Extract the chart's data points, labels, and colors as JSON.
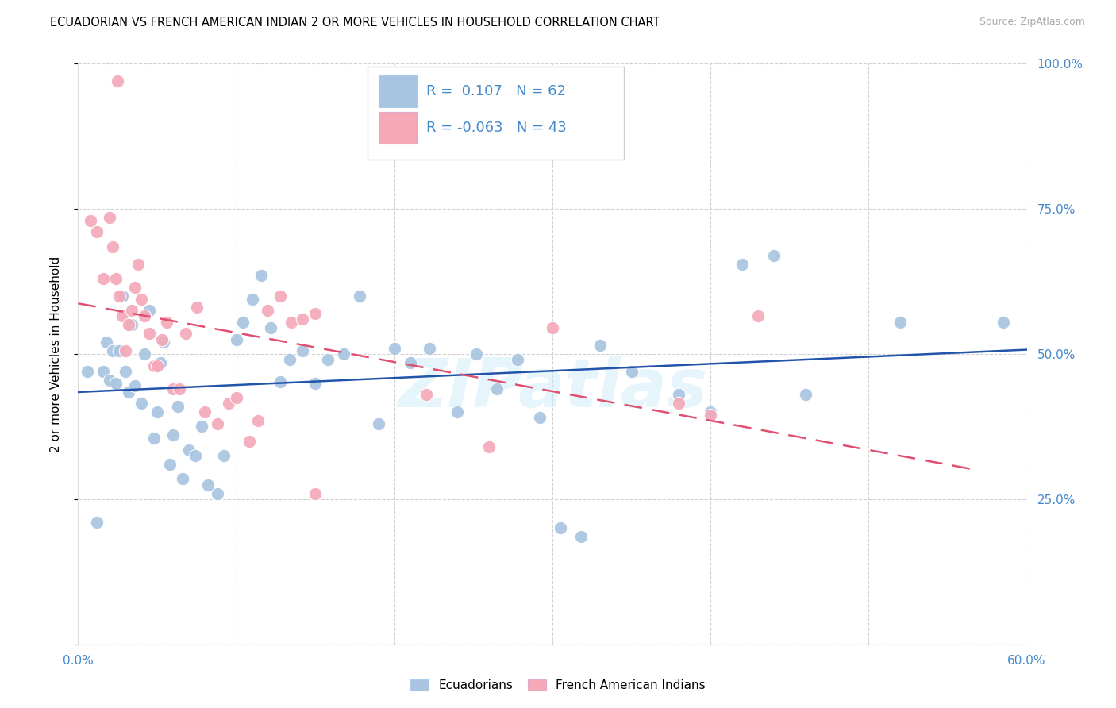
{
  "title": "ECUADORIAN VS FRENCH AMERICAN INDIAN 2 OR MORE VEHICLES IN HOUSEHOLD CORRELATION CHART",
  "source": "Source: ZipAtlas.com",
  "ylabel": "2 or more Vehicles in Household",
  "x_min": 0.0,
  "x_max": 0.6,
  "y_min": 0.0,
  "y_max": 1.0,
  "x_ticks": [
    0.0,
    0.1,
    0.2,
    0.3,
    0.4,
    0.5,
    0.6
  ],
  "x_tick_labels": [
    "0.0%",
    "",
    "",
    "",
    "",
    "",
    "60.0%"
  ],
  "y_ticks": [
    0.0,
    0.25,
    0.5,
    0.75,
    1.0
  ],
  "y_tick_labels_right": [
    "",
    "25.0%",
    "50.0%",
    "75.0%",
    "100.0%"
  ],
  "legend_labels": [
    "Ecuadorians",
    "French American Indians"
  ],
  "blue_R": 0.107,
  "blue_N": 62,
  "pink_R": -0.063,
  "pink_N": 43,
  "blue_color": "#a8c4e0",
  "pink_color": "#f4a8b8",
  "blue_line_color": "#2255aa",
  "pink_line_color": "#e05070",
  "axis_label_color": "#4488cc",
  "watermark": "ZIPatlas",
  "blue_x": [
    0.006,
    0.012,
    0.016,
    0.018,
    0.02,
    0.022,
    0.024,
    0.026,
    0.028,
    0.03,
    0.032,
    0.034,
    0.036,
    0.04,
    0.042,
    0.045,
    0.048,
    0.05,
    0.052,
    0.054,
    0.058,
    0.06,
    0.063,
    0.066,
    0.07,
    0.074,
    0.078,
    0.082,
    0.088,
    0.092,
    0.1,
    0.104,
    0.11,
    0.116,
    0.122,
    0.128,
    0.134,
    0.142,
    0.15,
    0.158,
    0.168,
    0.178,
    0.19,
    0.2,
    0.21,
    0.222,
    0.24,
    0.252,
    0.265,
    0.278,
    0.292,
    0.305,
    0.318,
    0.33,
    0.35,
    0.38,
    0.4,
    0.42,
    0.44,
    0.46,
    0.52,
    0.585
  ],
  "blue_y": [
    0.47,
    0.21,
    0.47,
    0.52,
    0.455,
    0.505,
    0.45,
    0.505,
    0.6,
    0.47,
    0.435,
    0.55,
    0.445,
    0.415,
    0.5,
    0.575,
    0.355,
    0.4,
    0.485,
    0.52,
    0.31,
    0.36,
    0.41,
    0.285,
    0.335,
    0.325,
    0.375,
    0.275,
    0.26,
    0.325,
    0.525,
    0.555,
    0.595,
    0.635,
    0.545,
    0.452,
    0.49,
    0.505,
    0.45,
    0.49,
    0.5,
    0.6,
    0.38,
    0.51,
    0.485,
    0.51,
    0.4,
    0.5,
    0.44,
    0.49,
    0.39,
    0.2,
    0.185,
    0.515,
    0.47,
    0.43,
    0.4,
    0.655,
    0.67,
    0.43,
    0.555,
    0.555
  ],
  "pink_x": [
    0.008,
    0.012,
    0.016,
    0.02,
    0.022,
    0.024,
    0.026,
    0.028,
    0.03,
    0.032,
    0.034,
    0.036,
    0.038,
    0.04,
    0.042,
    0.045,
    0.048,
    0.05,
    0.053,
    0.056,
    0.06,
    0.064,
    0.068,
    0.075,
    0.08,
    0.088,
    0.095,
    0.1,
    0.108,
    0.114,
    0.12,
    0.128,
    0.135,
    0.142,
    0.15,
    0.22,
    0.26,
    0.3,
    0.38,
    0.4,
    0.43,
    0.15,
    0.025
  ],
  "pink_y": [
    0.73,
    0.71,
    0.63,
    0.735,
    0.685,
    0.63,
    0.6,
    0.565,
    0.505,
    0.55,
    0.575,
    0.615,
    0.655,
    0.595,
    0.565,
    0.535,
    0.48,
    0.48,
    0.525,
    0.555,
    0.44,
    0.44,
    0.535,
    0.58,
    0.4,
    0.38,
    0.415,
    0.425,
    0.35,
    0.385,
    0.575,
    0.6,
    0.555,
    0.56,
    0.26,
    0.43,
    0.34,
    0.545,
    0.415,
    0.395,
    0.565,
    0.57,
    0.97
  ]
}
